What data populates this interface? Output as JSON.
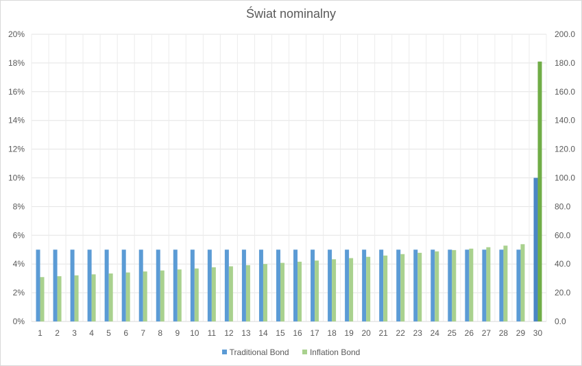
{
  "chart_data": {
    "type": "bar",
    "title": "Świat nominalny",
    "categories": [
      "1",
      "2",
      "3",
      "4",
      "5",
      "6",
      "7",
      "8",
      "9",
      "10",
      "11",
      "12",
      "13",
      "14",
      "15",
      "16",
      "17",
      "18",
      "19",
      "20",
      "21",
      "22",
      "23",
      "24",
      "25",
      "26",
      "27",
      "28",
      "29",
      "30"
    ],
    "series": [
      {
        "name": "Traditional Bond",
        "axis": "left",
        "color": "#5b9bd5",
        "values": [
          0.05,
          0.05,
          0.05,
          0.05,
          0.05,
          0.05,
          0.05,
          0.05,
          0.05,
          0.05,
          0.05,
          0.05,
          0.05,
          0.05,
          0.05,
          0.05,
          0.05,
          0.05,
          0.05,
          0.05,
          0.05,
          0.05,
          0.05,
          0.05,
          0.05,
          0.05,
          0.05,
          0.05,
          0.05,
          0.1
        ]
      },
      {
        "name": "Inflation Bond",
        "axis": "right",
        "color": "#a9d18e",
        "values": [
          30.9,
          31.5,
          32.1,
          32.8,
          33.4,
          34.1,
          34.8,
          35.5,
          36.2,
          36.9,
          37.7,
          38.4,
          39.2,
          40.0,
          40.8,
          41.6,
          42.4,
          43.3,
          44.1,
          45.0,
          45.9,
          46.9,
          47.8,
          48.8,
          49.7,
          50.7,
          51.7,
          52.8,
          53.8,
          181.0
        ]
      }
    ],
    "highlight": {
      "category": "30",
      "traditional_color": "#4a86c5",
      "inflation_color": "#70ad47"
    },
    "y_left": {
      "ylim": [
        0,
        0.2
      ],
      "ticks": [
        "0%",
        "2%",
        "4%",
        "6%",
        "8%",
        "10%",
        "12%",
        "14%",
        "16%",
        "18%",
        "20%"
      ]
    },
    "y_right": {
      "ylim": [
        0,
        200
      ],
      "ticks": [
        "0.0",
        "20.0",
        "40.0",
        "60.0",
        "80.0",
        "100.0",
        "120.0",
        "140.0",
        "160.0",
        "180.0",
        "200.0"
      ]
    },
    "grid": true,
    "legend_position": "bottom"
  }
}
